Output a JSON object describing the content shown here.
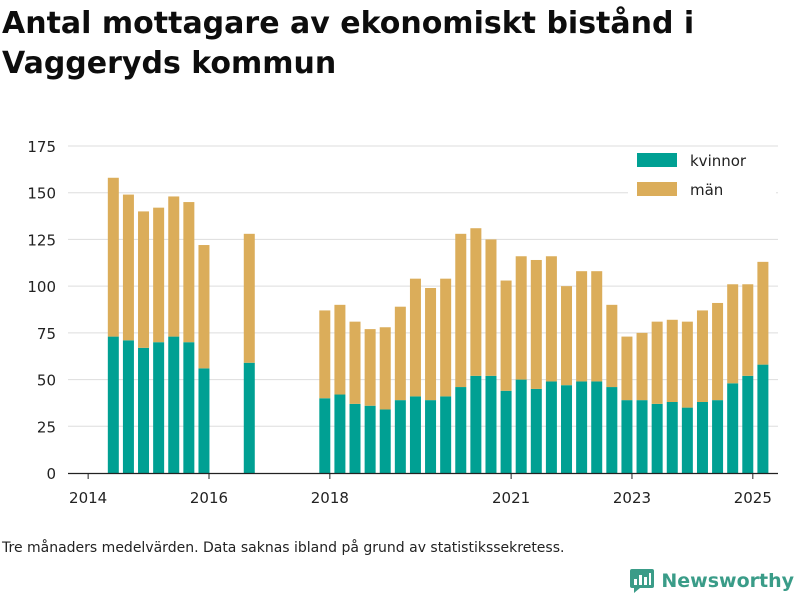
{
  "title": "Antal mottagare av ekonomiskt bistånd i Vaggeryds kommun",
  "footnote": "Tre månaders medelvärden. Data saknas ibland på grund av statistikssekretess.",
  "brand": "Newsworthy",
  "colors": {
    "kvinnor": "#00a093",
    "man": "#dbad5a",
    "grid": "#dddddd",
    "axis": "#222222",
    "brand": "#3a9c88"
  },
  "chart_data": {
    "type": "bar",
    "stacked": true,
    "x_axis_type": "date",
    "x_ticks": [
      {
        "label": "2014",
        "date": "2014-01"
      },
      {
        "label": "2016",
        "date": "2016-01"
      },
      {
        "label": "2018",
        "date": "2018-01"
      },
      {
        "label": "2021",
        "date": "2021-01"
      },
      {
        "label": "2023",
        "date": "2023-01"
      },
      {
        "label": "2025",
        "date": "2025-01"
      }
    ],
    "x_range": [
      "2013-09",
      "2025-06"
    ],
    "ylim": [
      0,
      175
    ],
    "y_ticks": [
      0,
      25,
      50,
      75,
      100,
      125,
      150,
      175
    ],
    "grid": true,
    "legend_position": "top-right",
    "categories": [
      "2014-06",
      "2014-09",
      "2014-12",
      "2015-03",
      "2015-06",
      "2015-09",
      "2015-12",
      "2016-09",
      "2017-12",
      "2018-03",
      "2018-06",
      "2018-09",
      "2018-12",
      "2019-03",
      "2019-06",
      "2019-09",
      "2019-12",
      "2020-03",
      "2020-06",
      "2020-09",
      "2020-12",
      "2021-03",
      "2021-06",
      "2021-09",
      "2021-12",
      "2022-03",
      "2022-06",
      "2022-09",
      "2022-12",
      "2023-03",
      "2023-06",
      "2023-09",
      "2023-12",
      "2024-03",
      "2024-06",
      "2024-09",
      "2024-12",
      "2025-03"
    ],
    "series": [
      {
        "name": "kvinnor",
        "values": [
          73,
          71,
          67,
          70,
          73,
          70,
          56,
          59,
          40,
          42,
          37,
          36,
          34,
          39,
          41,
          39,
          41,
          46,
          52,
          52,
          44,
          50,
          45,
          49,
          47,
          49,
          49,
          46,
          39,
          39,
          37,
          38,
          35,
          38,
          39,
          48,
          52,
          58
        ]
      },
      {
        "name": "män",
        "values": [
          85,
          78,
          73,
          72,
          75,
          75,
          66,
          69,
          47,
          48,
          44,
          41,
          44,
          50,
          63,
          60,
          63,
          82,
          79,
          73,
          59,
          66,
          69,
          67,
          53,
          59,
          59,
          44,
          34,
          36,
          44,
          44,
          46,
          49,
          52,
          53,
          49,
          55
        ]
      }
    ]
  }
}
